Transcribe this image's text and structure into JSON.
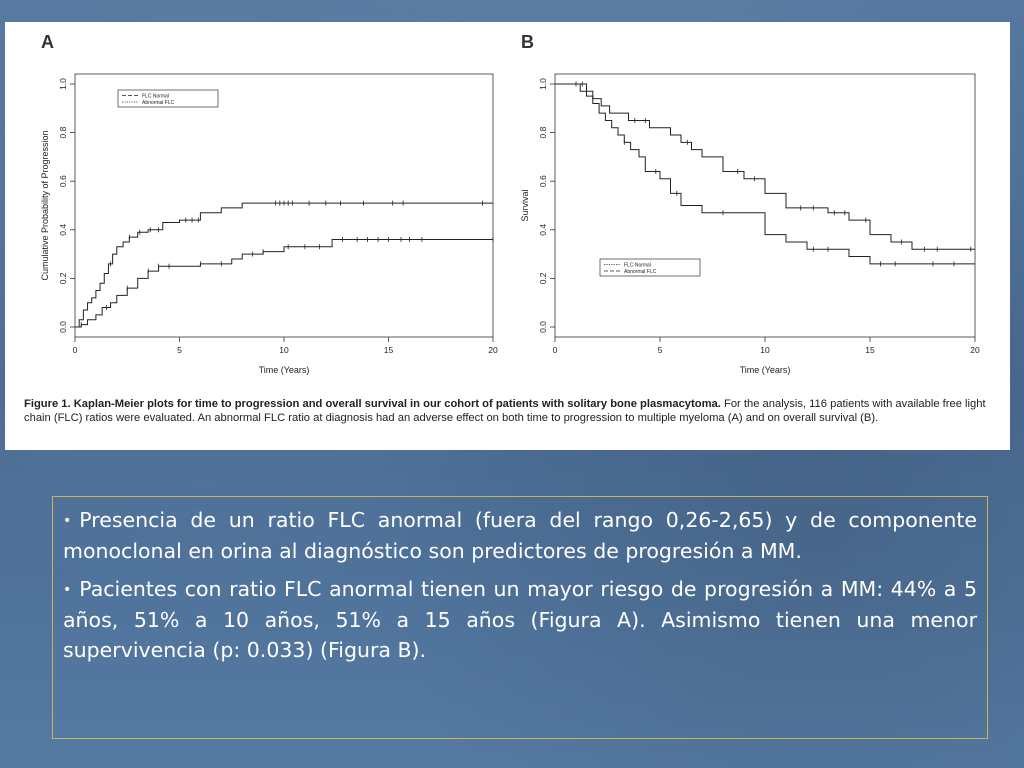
{
  "figure": {
    "caption_bold": "Figure 1. Kaplan-Meier plots for time to progression and overall survival in our cohort of patients with solitary bone plasmacytoma.",
    "caption_rest": " For the analysis, 116 patients with available free light chain (FLC) ratios were evaluated. An abnormal FLC ratio at diagnosis had an adverse effect on both time to progression to multiple myeloma (A) and on overall survival (B)."
  },
  "chart_data": [
    {
      "type": "line",
      "panel_label": "A",
      "xlabel": "Time (Years)",
      "ylabel": "Cumulative Probability of Progression",
      "xlim": [
        0,
        20
      ],
      "ylim": [
        0,
        1
      ],
      "x_ticks": [
        "0",
        "5",
        "10",
        "15",
        "20"
      ],
      "y_ticks": [
        "0.0",
        "0.2",
        "0.4",
        "0.6",
        "0.8",
        "1.0"
      ],
      "legend": [
        "FLC Normal",
        "Abnormal FLC"
      ],
      "legend_position": "top-left",
      "series": [
        {
          "name": "Abnormal FLC",
          "x": [
            0,
            0.2,
            0.4,
            0.6,
            0.8,
            1.0,
            1.2,
            1.4,
            1.6,
            1.8,
            2.0,
            2.3,
            2.6,
            3.0,
            3.5,
            4.2,
            5.0,
            6.0,
            7.0,
            8.0,
            20
          ],
          "y": [
            0,
            0.03,
            0.07,
            0.1,
            0.12,
            0.15,
            0.18,
            0.22,
            0.26,
            0.3,
            0.33,
            0.35,
            0.37,
            0.39,
            0.4,
            0.43,
            0.44,
            0.47,
            0.49,
            0.51,
            0.51
          ],
          "censored_x": [
            1.7,
            2.6,
            3.1,
            3.6,
            4.0,
            5.3,
            5.6,
            5.9,
            9.6,
            9.8,
            10.0,
            10.2,
            10.4,
            11.2,
            12.0,
            12.7,
            13.8,
            15.2,
            15.7,
            19.5
          ]
        },
        {
          "name": "FLC Normal",
          "x": [
            0,
            0.3,
            0.6,
            1.0,
            1.3,
            1.7,
            2.0,
            2.5,
            3.0,
            3.5,
            4.0,
            6.0,
            7.5,
            8.0,
            9.0,
            10.0,
            12.0,
            12.3,
            20
          ],
          "y": [
            0,
            0.01,
            0.03,
            0.05,
            0.08,
            0.1,
            0.13,
            0.16,
            0.2,
            0.23,
            0.25,
            0.26,
            0.28,
            0.3,
            0.31,
            0.33,
            0.33,
            0.36,
            0.36
          ],
          "censored_x": [
            0.3,
            1.5,
            2.5,
            3.5,
            4.0,
            4.5,
            6.0,
            7.0,
            8.5,
            9.0,
            10.2,
            11.0,
            11.7,
            12.8,
            13.5,
            14.0,
            14.5,
            15.0,
            15.6,
            16.0,
            16.6,
            20.0
          ]
        }
      ]
    },
    {
      "type": "line",
      "panel_label": "B",
      "xlabel": "Time (Years)",
      "ylabel": "Survival",
      "xlim": [
        0,
        20
      ],
      "ylim": [
        0,
        1
      ],
      "x_ticks": [
        "0",
        "5",
        "10",
        "15",
        "20"
      ],
      "y_ticks": [
        "0.0",
        "0.2",
        "0.4",
        "0.6",
        "0.8",
        "1.0"
      ],
      "legend": [
        "FLC Normal",
        "Abnormal FLC"
      ],
      "legend_position": "bottom-right",
      "series": [
        {
          "name": "FLC Normal",
          "x": [
            0,
            1.2,
            1.8,
            2.2,
            2.6,
            3.5,
            4.5,
            5.5,
            6.0,
            6.5,
            7.0,
            8.0,
            9.0,
            10.0,
            11.0,
            13.0,
            14.0,
            15.0,
            16.0,
            17.0,
            20
          ],
          "y": [
            1.0,
            0.97,
            0.94,
            0.91,
            0.88,
            0.85,
            0.82,
            0.79,
            0.76,
            0.73,
            0.7,
            0.64,
            0.61,
            0.55,
            0.49,
            0.47,
            0.44,
            0.38,
            0.35,
            0.32,
            0.32
          ],
          "censored_x": [
            1.5,
            3.8,
            4.3,
            6.3,
            8.7,
            9.5,
            11.7,
            12.3,
            13.3,
            13.8,
            14.8,
            16.5,
            17.6,
            18.2,
            19.8
          ]
        },
        {
          "name": "Abnormal FLC",
          "x": [
            0,
            1.5,
            1.8,
            2.1,
            2.4,
            2.7,
            3.0,
            3.3,
            3.6,
            4.0,
            4.3,
            5.0,
            5.5,
            6.0,
            7.0,
            10.0,
            11.0,
            12.0,
            14.0,
            15.0,
            20
          ],
          "y": [
            1.0,
            0.95,
            0.92,
            0.88,
            0.85,
            0.82,
            0.79,
            0.76,
            0.73,
            0.7,
            0.64,
            0.61,
            0.55,
            0.5,
            0.47,
            0.38,
            0.35,
            0.32,
            0.29,
            0.26,
            0.26
          ],
          "censored_x": [
            1.0,
            1.3,
            3.3,
            4.8,
            5.8,
            8.0,
            12.3,
            13.0,
            15.5,
            16.2,
            18.0,
            19.0
          ]
        }
      ]
    }
  ],
  "bullets": [
    "Presencia de un ratio FLC anormal (fuera del rango 0,26-2,65) y de componente monoclonal en orina al diagnóstico son predictores de progresión a MM.",
    "Pacientes con ratio FLC anormal tienen un mayor riesgo de progresión a MM: 44% a 5 años, 51% a 10 años, 51% a 15 años (Figura A). Asimismo tienen una menor supervivencia (p: 0.033) (Figura B)."
  ]
}
